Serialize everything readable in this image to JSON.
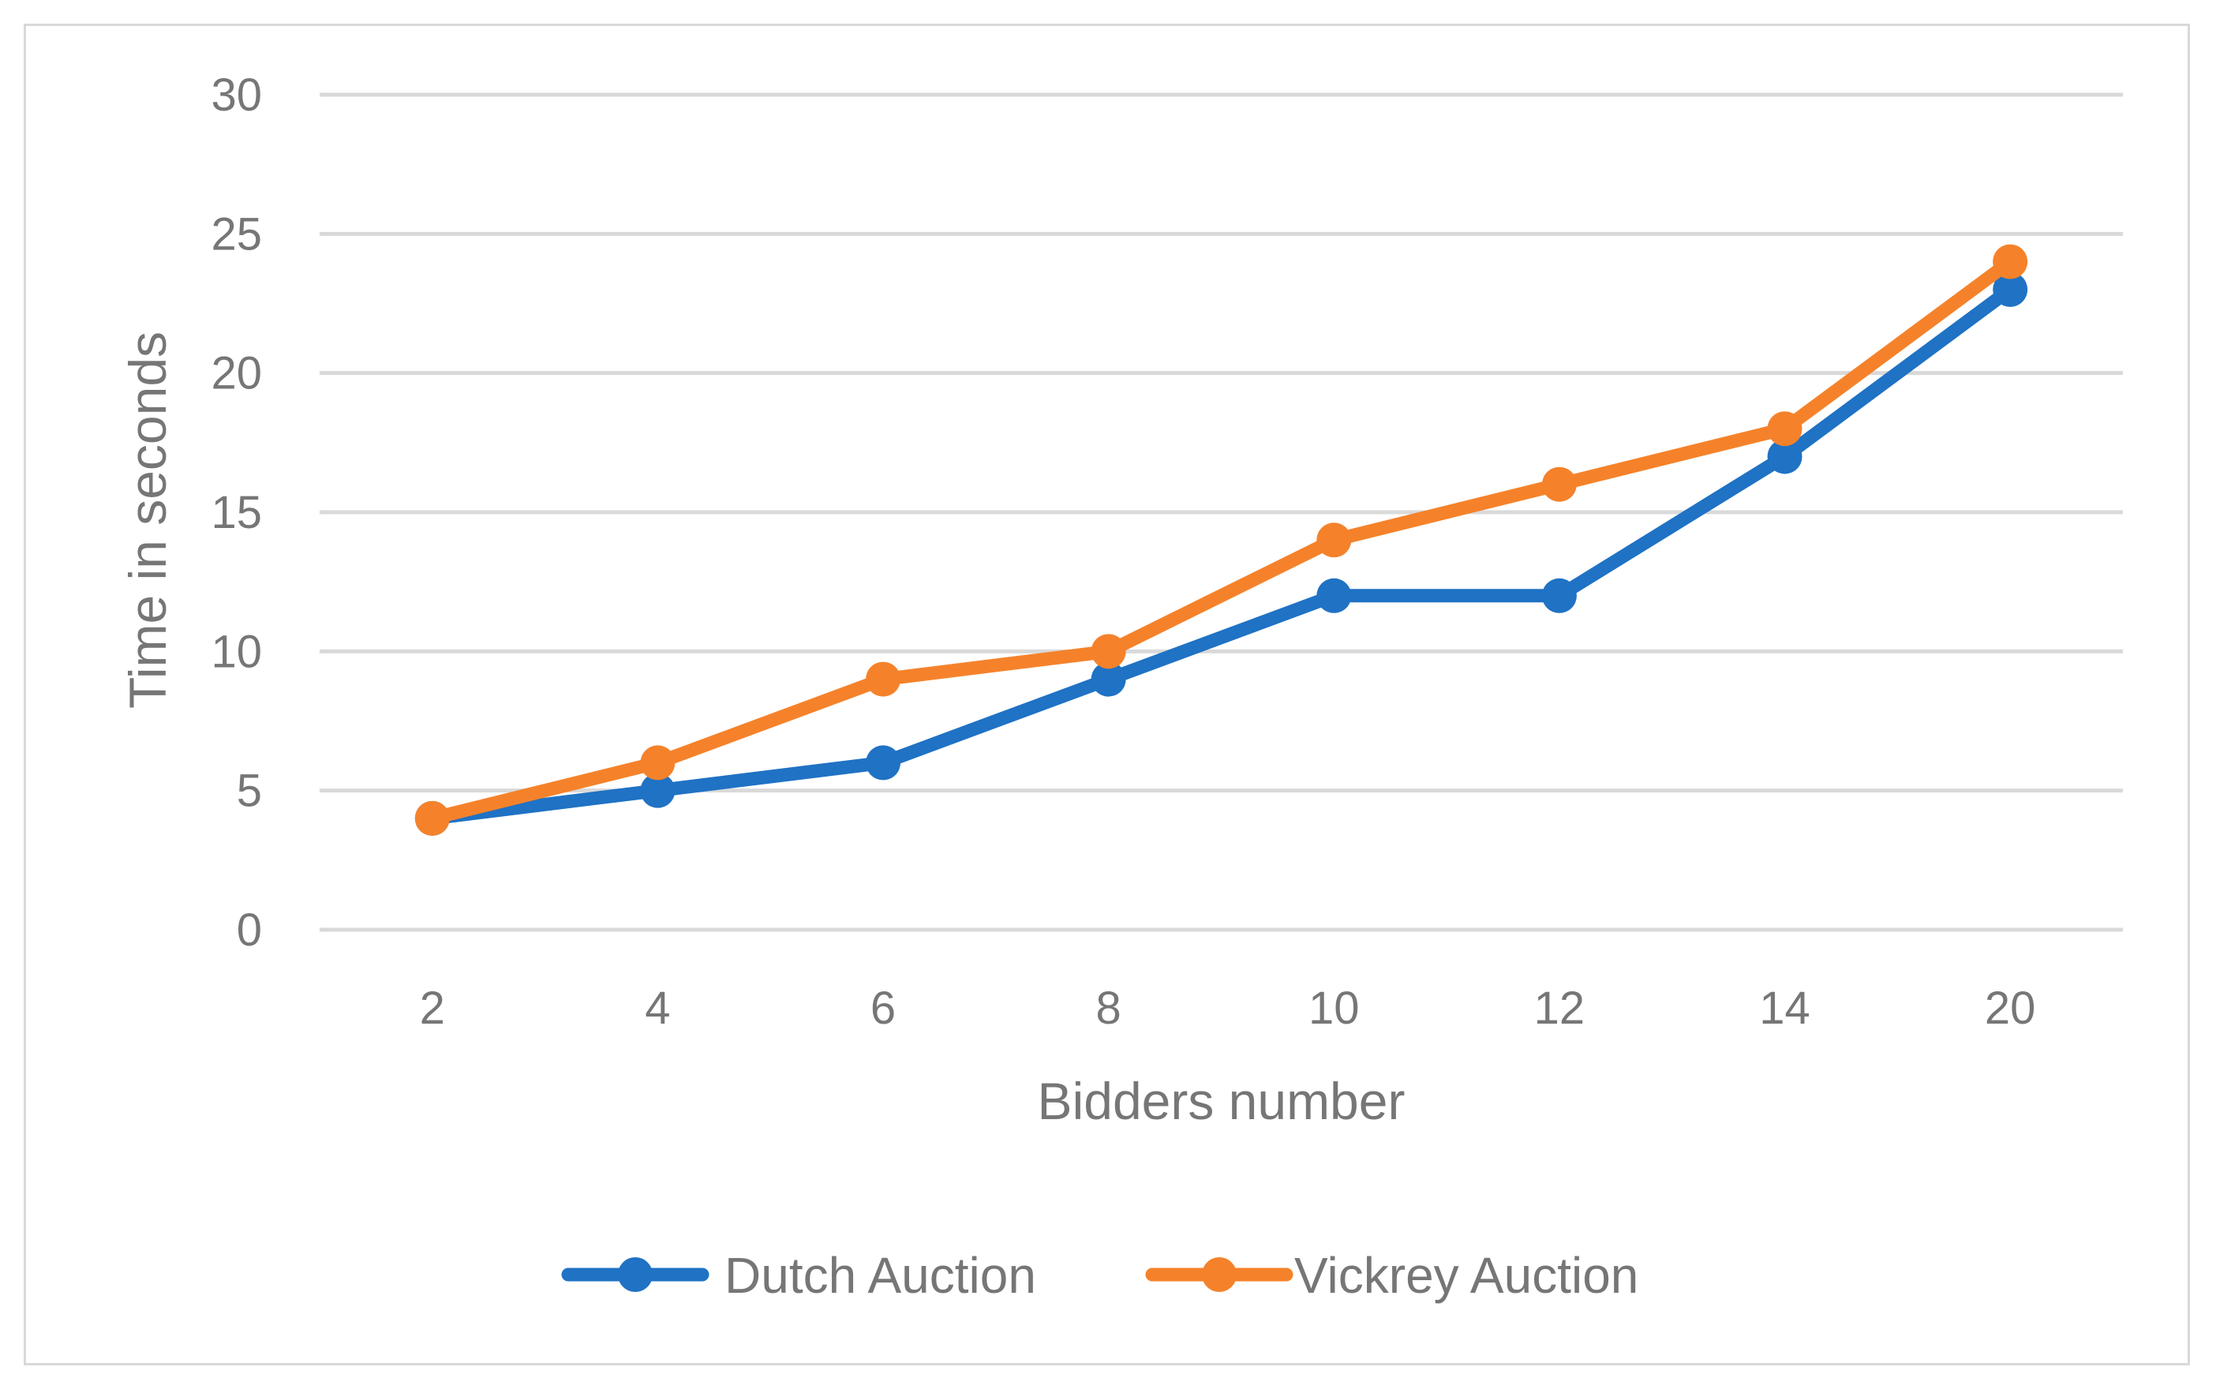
{
  "chart_data": {
    "type": "line",
    "categories": [
      "2",
      "4",
      "6",
      "8",
      "10",
      "12",
      "14",
      "20"
    ],
    "series": [
      {
        "name": "Dutch Auction",
        "values": [
          4,
          5,
          6,
          9,
          12,
          12,
          17,
          23
        ],
        "color": "#1f72c4"
      },
      {
        "name": "Vickrey Auction",
        "values": [
          4,
          6,
          9,
          10,
          14,
          16,
          18,
          24
        ],
        "color": "#f5822a"
      }
    ],
    "xlabel": "Bidders number",
    "ylabel": "Time in seconds",
    "ylim": [
      0,
      30
    ],
    "yticks": [
      0,
      5,
      10,
      15,
      20,
      25,
      30
    ],
    "grid": true,
    "legend_position": "bottom"
  }
}
